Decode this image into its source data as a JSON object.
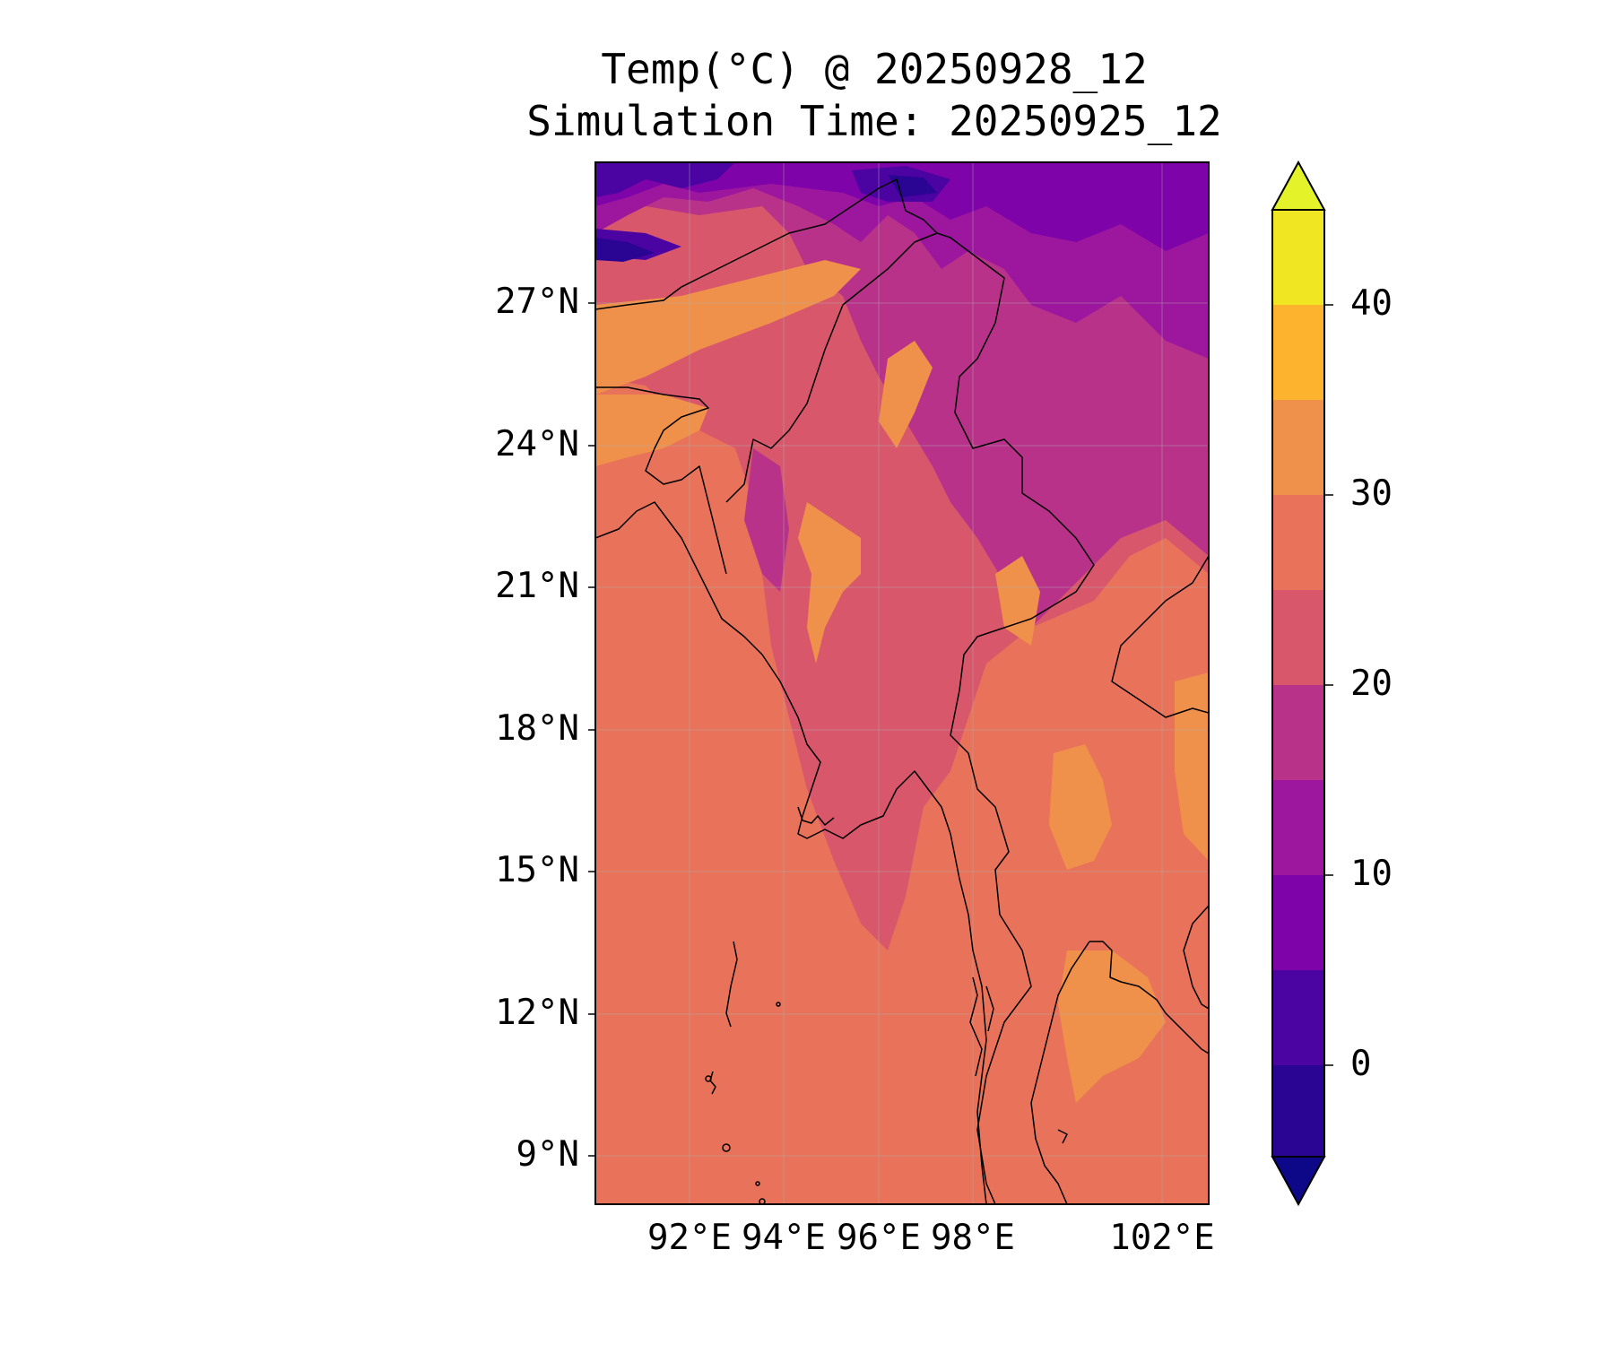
{
  "title": {
    "line1": "Temp(°C) @ 20250928_12",
    "line2": "Simulation Time: 20250925_12"
  },
  "map": {
    "lat_ticks": [
      "27°N",
      "24°N",
      "21°N",
      "18°N",
      "15°N",
      "12°N",
      "9°N"
    ],
    "lon_ticks": [
      "92°E",
      "94°E",
      "96°E",
      "98°E",
      "102°E"
    ],
    "lat_range": [
      8,
      30
    ],
    "lon_range": [
      90,
      103
    ],
    "grid": true
  },
  "colorbar": {
    "ticks": [
      "40",
      "30",
      "20",
      "10",
      "0"
    ],
    "levels": [
      -5,
      0,
      5,
      10,
      15,
      20,
      25,
      30,
      35,
      40,
      45
    ],
    "extend": "both",
    "colors": [
      "#0d0887",
      "#2a0593",
      "#4b03a1",
      "#7e03a8",
      "#9c179e",
      "#b83289",
      "#cc4778",
      "#d8576b",
      "#e8735a",
      "#f0914b",
      "#fdb32e",
      "#f0e621",
      "#e4f22a"
    ],
    "colormap": "plasma"
  }
}
